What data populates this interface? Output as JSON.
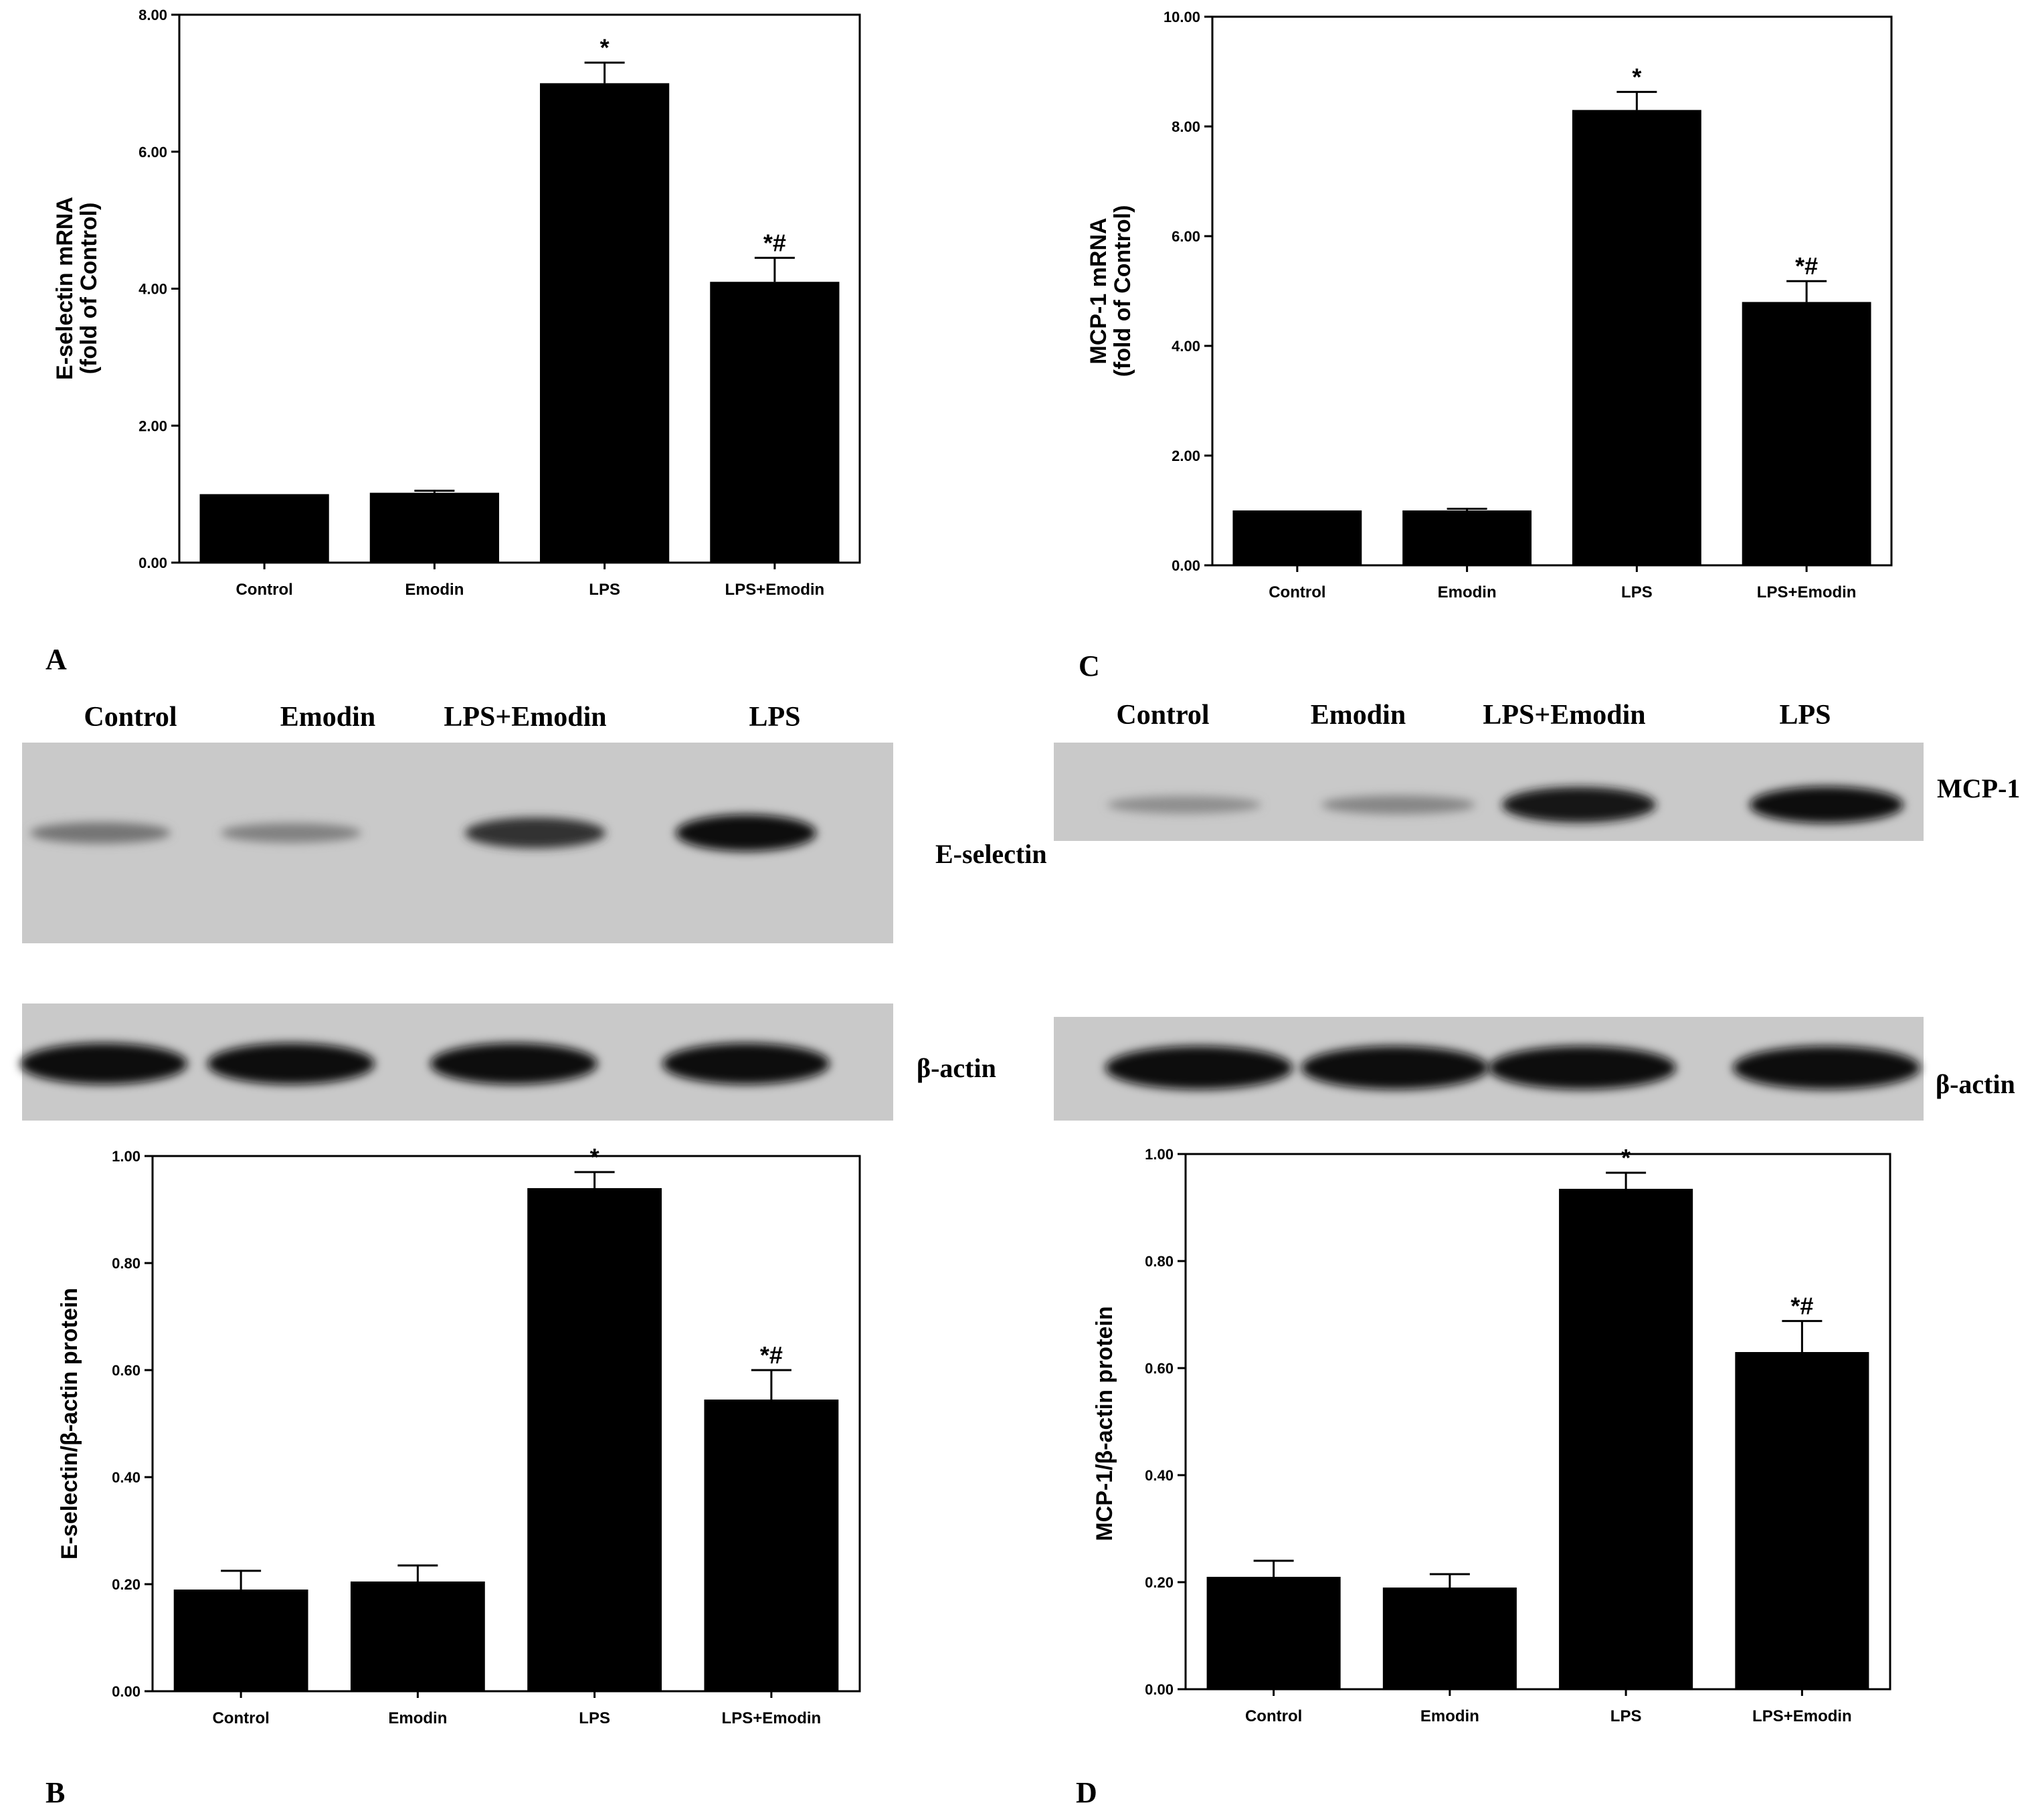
{
  "panels": {
    "A": "A",
    "B": "B",
    "C": "C",
    "D": "D"
  },
  "blots": [
    {
      "lanes": [
        "Control",
        "Emodin",
        "LPS+Emodin",
        "LPS"
      ],
      "target_label": "E-selectin",
      "loading_label": "β-actin",
      "target_band_intensity": [
        0.35,
        0.28,
        0.75,
        1.0
      ],
      "loading_band_intensity": [
        1.0,
        1.0,
        1.0,
        1.0
      ]
    },
    {
      "lanes": [
        "Control",
        "Emodin",
        "LPS+Emodin",
        "LPS"
      ],
      "target_label": "MCP-1",
      "loading_label": "β-actin",
      "target_band_intensity": [
        0.2,
        0.25,
        0.95,
        1.0
      ],
      "loading_band_intensity": [
        1.0,
        1.0,
        1.0,
        1.0
      ]
    }
  ],
  "chart_data": [
    {
      "panel": "A",
      "type": "bar",
      "ylabel_lines": [
        "E-selectin mRNA",
        "(fold of Control)"
      ],
      "categories": [
        "Control",
        "Emodin",
        "LPS",
        "LPS+Emodin"
      ],
      "values": [
        1.0,
        1.02,
        7.0,
        4.1
      ],
      "errors": [
        0.0,
        0.03,
        0.3,
        0.35
      ],
      "annotations": [
        "",
        "",
        "*",
        "*#"
      ],
      "ylim": [
        0,
        8
      ],
      "yticks": [
        "0.00",
        "2.00",
        "4.00",
        "6.00",
        "8.00"
      ]
    },
    {
      "panel": "B",
      "type": "bar",
      "ylabel_lines": [
        "E-selectin/β-actin protein"
      ],
      "categories": [
        "Control",
        "Emodin",
        "LPS",
        "LPS+Emodin"
      ],
      "values": [
        0.19,
        0.205,
        0.94,
        0.545
      ],
      "errors": [
        0.035,
        0.03,
        0.03,
        0.055
      ],
      "annotations": [
        "",
        "",
        "*",
        "*#"
      ],
      "ylim": [
        0,
        1
      ],
      "yticks": [
        "0.00",
        "0.20",
        "0.40",
        "0.60",
        "0.80",
        "1.00"
      ]
    },
    {
      "panel": "C",
      "type": "bar",
      "ylabel_lines": [
        "MCP-1 mRNA",
        "(fold of Control)"
      ],
      "categories": [
        "Control",
        "Emodin",
        "LPS",
        "LPS+Emodin"
      ],
      "values": [
        1.0,
        1.0,
        8.3,
        4.8
      ],
      "errors": [
        0.0,
        0.03,
        0.33,
        0.38
      ],
      "annotations": [
        "",
        "",
        "*",
        "*#"
      ],
      "ylim": [
        0,
        10
      ],
      "yticks": [
        "0.00",
        "2.00",
        "4.00",
        "6.00",
        "8.00",
        "10.00"
      ]
    },
    {
      "panel": "D",
      "type": "bar",
      "ylabel_lines": [
        "MCP-1/β-actin protein"
      ],
      "categories": [
        "Control",
        "Emodin",
        "LPS",
        "LPS+Emodin"
      ],
      "values": [
        0.21,
        0.19,
        0.935,
        0.63
      ],
      "errors": [
        0.03,
        0.025,
        0.03,
        0.058
      ],
      "annotations": [
        "",
        "",
        "*",
        "*#"
      ],
      "ylim": [
        0,
        1
      ],
      "yticks": [
        "0.00",
        "0.20",
        "0.40",
        "0.60",
        "0.80",
        "1.00"
      ]
    }
  ]
}
